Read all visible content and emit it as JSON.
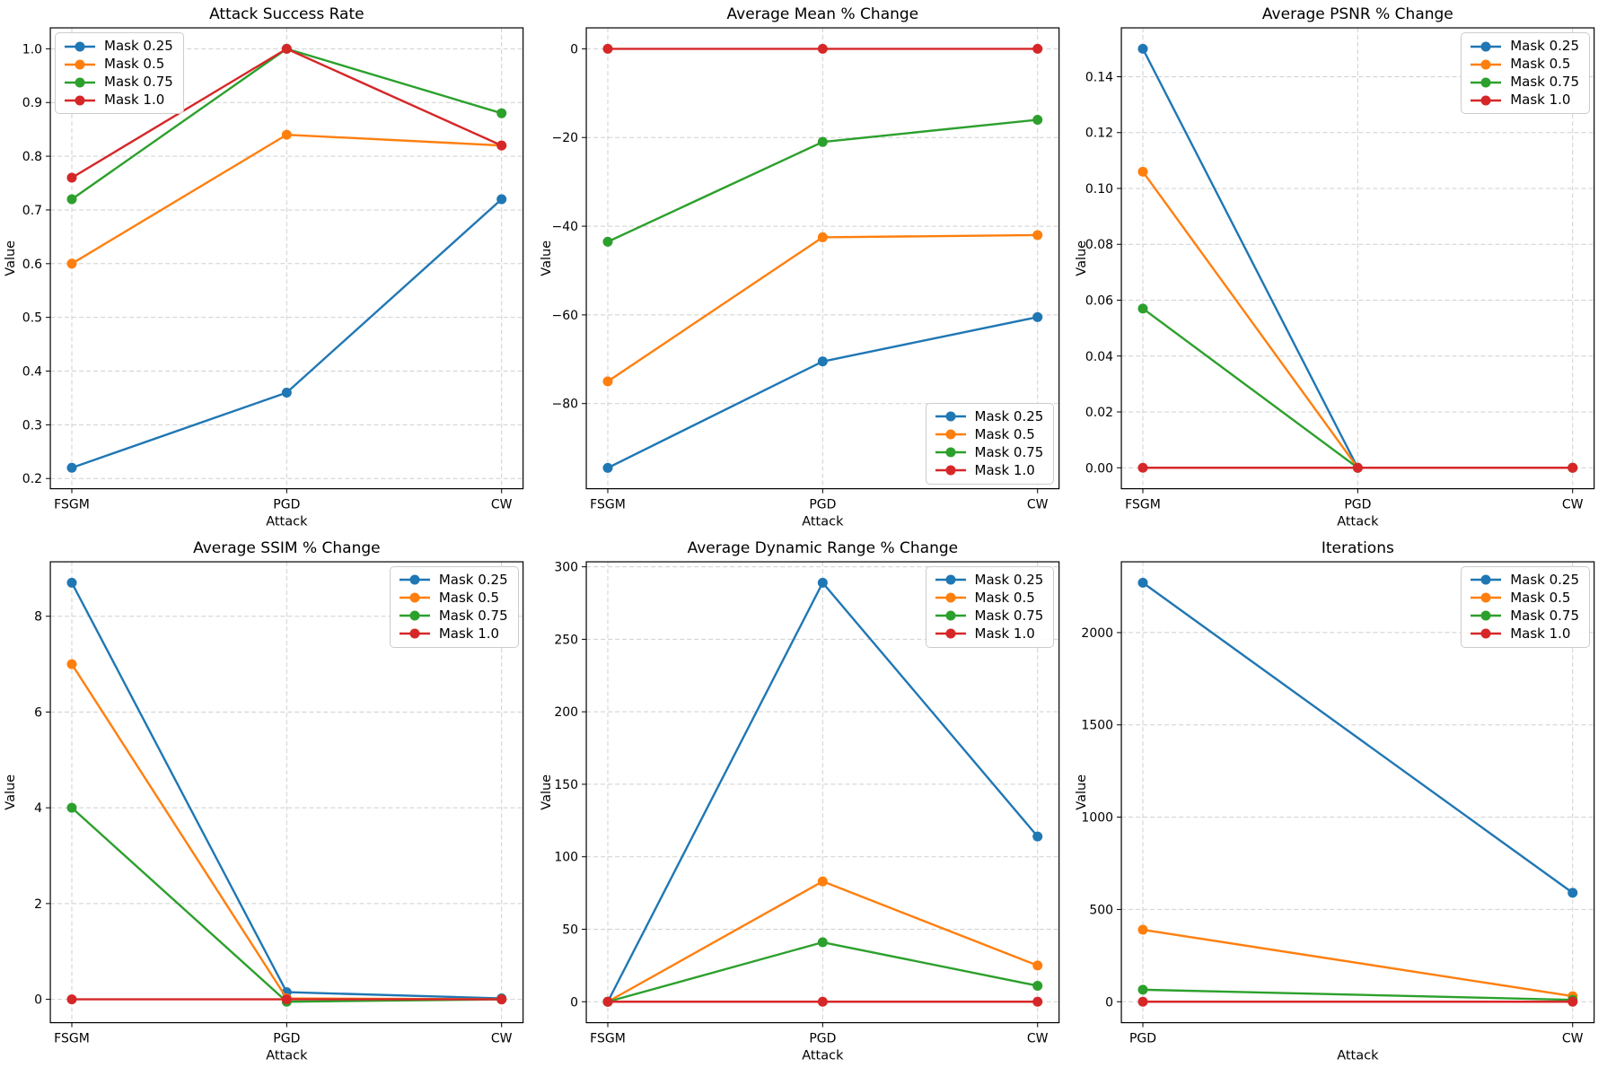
{
  "figure": {
    "background": "#ffffff",
    "grid": true,
    "grid_style": "dashed",
    "rows": 2,
    "cols": 3
  },
  "palette": {
    "mask_025": "#1f77b4",
    "mask_05": "#ff7f0e",
    "mask_075": "#2ca02c",
    "mask_10": "#d62728"
  },
  "chart_data": [
    {
      "type": "line",
      "title": "Attack Success Rate",
      "xlabel": "Attack",
      "ylabel": "Value",
      "categories": [
        "FSGM",
        "PGD",
        "CW"
      ],
      "series": [
        {
          "name": "Mask 0.25",
          "color": "#1f77b4",
          "values": [
            0.22,
            0.36,
            0.72
          ]
        },
        {
          "name": "Mask 0.5",
          "color": "#ff7f0e",
          "values": [
            0.6,
            0.84,
            0.82
          ]
        },
        {
          "name": "Mask 0.75",
          "color": "#2ca02c",
          "values": [
            0.72,
            1.0,
            0.88
          ]
        },
        {
          "name": "Mask 1.0",
          "color": "#d62728",
          "values": [
            0.76,
            1.0,
            0.82
          ]
        }
      ],
      "ylim": [
        0.181,
        1.039
      ],
      "ytick_values": [
        0.2,
        0.3,
        0.4,
        0.5,
        0.6,
        0.7,
        0.8,
        0.9,
        1.0
      ],
      "ytick_labels": [
        "0.2",
        "0.3",
        "0.4",
        "0.5",
        "0.6",
        "0.7",
        "0.8",
        "0.9",
        "1.0"
      ],
      "legend_loc": "upper-left",
      "grid": true
    },
    {
      "type": "line",
      "title": "Average Mean % Change",
      "xlabel": "Attack",
      "ylabel": "Value",
      "categories": [
        "FSGM",
        "PGD",
        "CW"
      ],
      "series": [
        {
          "name": "Mask 0.25",
          "color": "#1f77b4",
          "values": [
            -94.5,
            -70.5,
            -60.5
          ]
        },
        {
          "name": "Mask 0.5",
          "color": "#ff7f0e",
          "values": [
            -75.0,
            -42.5,
            -42.0
          ]
        },
        {
          "name": "Mask 0.75",
          "color": "#2ca02c",
          "values": [
            -43.5,
            -21.0,
            -16.0
          ]
        },
        {
          "name": "Mask 1.0",
          "color": "#d62728",
          "values": [
            0,
            0,
            0
          ]
        }
      ],
      "ylim": [
        -99.2,
        4.73
      ],
      "ytick_values": [
        0,
        -20,
        -40,
        -60,
        -80
      ],
      "ytick_labels": [
        "0",
        "−20",
        "−40",
        "−60",
        "−80"
      ],
      "legend_loc": "lower-right",
      "grid": true
    },
    {
      "type": "line",
      "title": "Average PSNR % Change",
      "xlabel": "Attack",
      "ylabel": "Value",
      "categories": [
        "FSGM",
        "PGD",
        "CW"
      ],
      "series": [
        {
          "name": "Mask 0.25",
          "color": "#1f77b4",
          "values": [
            0.15,
            0.0,
            0.0
          ]
        },
        {
          "name": "Mask 0.5",
          "color": "#ff7f0e",
          "values": [
            0.106,
            0.0,
            0.0
          ]
        },
        {
          "name": "Mask 0.75",
          "color": "#2ca02c",
          "values": [
            0.057,
            0.0,
            0.0
          ]
        },
        {
          "name": "Mask 1.0",
          "color": "#d62728",
          "values": [
            0.0,
            0.0,
            0.0
          ]
        }
      ],
      "ylim": [
        -0.0075,
        0.1575
      ],
      "ytick_values": [
        0.0,
        0.02,
        0.04,
        0.06,
        0.08,
        0.1,
        0.12,
        0.14
      ],
      "ytick_labels": [
        "0.00",
        "0.02",
        "0.04",
        "0.06",
        "0.08",
        "0.10",
        "0.12",
        "0.14"
      ],
      "legend_loc": "upper-right",
      "grid": true
    },
    {
      "type": "line",
      "title": "Average SSIM % Change",
      "xlabel": "Attack",
      "ylabel": "Value",
      "categories": [
        "FSGM",
        "PGD",
        "CW"
      ],
      "series": [
        {
          "name": "Mask 0.25",
          "color": "#1f77b4",
          "values": [
            8.7,
            0.15,
            0.02
          ]
        },
        {
          "name": "Mask 0.5",
          "color": "#ff7f0e",
          "values": [
            7.0,
            0.02,
            0.0
          ]
        },
        {
          "name": "Mask 0.75",
          "color": "#2ca02c",
          "values": [
            4.0,
            -0.05,
            0.0
          ]
        },
        {
          "name": "Mask 1.0",
          "color": "#d62728",
          "values": [
            0,
            0,
            0
          ]
        }
      ],
      "ylim": [
        -0.4875,
        9.1375
      ],
      "ytick_values": [
        0,
        2,
        4,
        6,
        8
      ],
      "ytick_labels": [
        "0",
        "2",
        "4",
        "6",
        "8"
      ],
      "legend_loc": "upper-right",
      "grid": true
    },
    {
      "type": "line",
      "title": "Average Dynamic Range % Change",
      "xlabel": "Attack",
      "ylabel": "Value",
      "categories": [
        "FSGM",
        "PGD",
        "CW"
      ],
      "series": [
        {
          "name": "Mask 0.25",
          "color": "#1f77b4",
          "values": [
            0,
            289,
            114
          ]
        },
        {
          "name": "Mask 0.5",
          "color": "#ff7f0e",
          "values": [
            0,
            83,
            25
          ]
        },
        {
          "name": "Mask 0.75",
          "color": "#2ca02c",
          "values": [
            0,
            41,
            11
          ]
        },
        {
          "name": "Mask 1.0",
          "color": "#d62728",
          "values": [
            0,
            0,
            0
          ]
        }
      ],
      "ylim": [
        -14.45,
        303.45
      ],
      "ytick_values": [
        0,
        50,
        100,
        150,
        200,
        250,
        300
      ],
      "ytick_labels": [
        "0",
        "50",
        "100",
        "150",
        "200",
        "250",
        "300"
      ],
      "legend_loc": "upper-right",
      "grid": true
    },
    {
      "type": "line",
      "title": "Iterations",
      "xlabel": "Attack",
      "ylabel": "Value",
      "categories": [
        "PGD",
        "CW"
      ],
      "series": [
        {
          "name": "Mask 0.25",
          "color": "#1f77b4",
          "values": [
            2270,
            590
          ]
        },
        {
          "name": "Mask 0.5",
          "color": "#ff7f0e",
          "values": [
            390,
            30
          ]
        },
        {
          "name": "Mask 0.75",
          "color": "#2ca02c",
          "values": [
            65,
            10
          ]
        },
        {
          "name": "Mask 1.0",
          "color": "#d62728",
          "values": [
            0,
            0
          ]
        }
      ],
      "ylim": [
        -113.5,
        2383.5
      ],
      "ytick_values": [
        0,
        500,
        1000,
        1500,
        2000
      ],
      "ytick_labels": [
        "0",
        "500",
        "1000",
        "1500",
        "2000"
      ],
      "legend_loc": "upper-right",
      "grid": true
    }
  ]
}
